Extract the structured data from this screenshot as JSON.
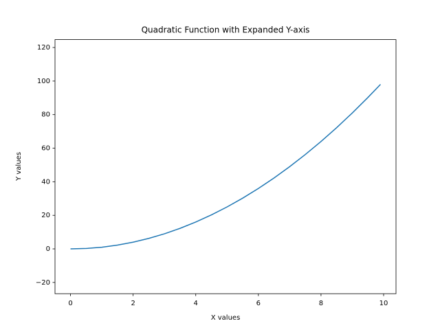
{
  "chart_data": {
    "type": "line",
    "title": "Quadratic Function with Expanded Y-axis",
    "x_label": "X values",
    "y_label": "Y values",
    "x": [
      0,
      0.5,
      1,
      1.5,
      2,
      2.5,
      3,
      3.5,
      4,
      4.5,
      5,
      5.5,
      6,
      6.5,
      7,
      7.5,
      8,
      8.5,
      9,
      9.5,
      9.9
    ],
    "series": [
      {
        "color": "#1f77b4",
        "values": [
          0,
          0.25,
          1,
          2.25,
          4,
          6.25,
          9,
          12.25,
          16,
          20.25,
          25,
          30.25,
          36,
          42.25,
          49,
          56.25,
          64,
          72.25,
          81,
          90.25,
          98.01
        ]
      }
    ],
    "xlim": [
      -0.495,
      10.395
    ],
    "xticks": [
      0,
      2,
      4,
      6,
      8,
      10
    ],
    "ylim": [
      -26.7,
      124.7
    ],
    "yticks": [
      {
        "value": -20,
        "label": "−20"
      },
      0,
      20,
      40,
      60,
      80,
      100,
      120
    ]
  }
}
